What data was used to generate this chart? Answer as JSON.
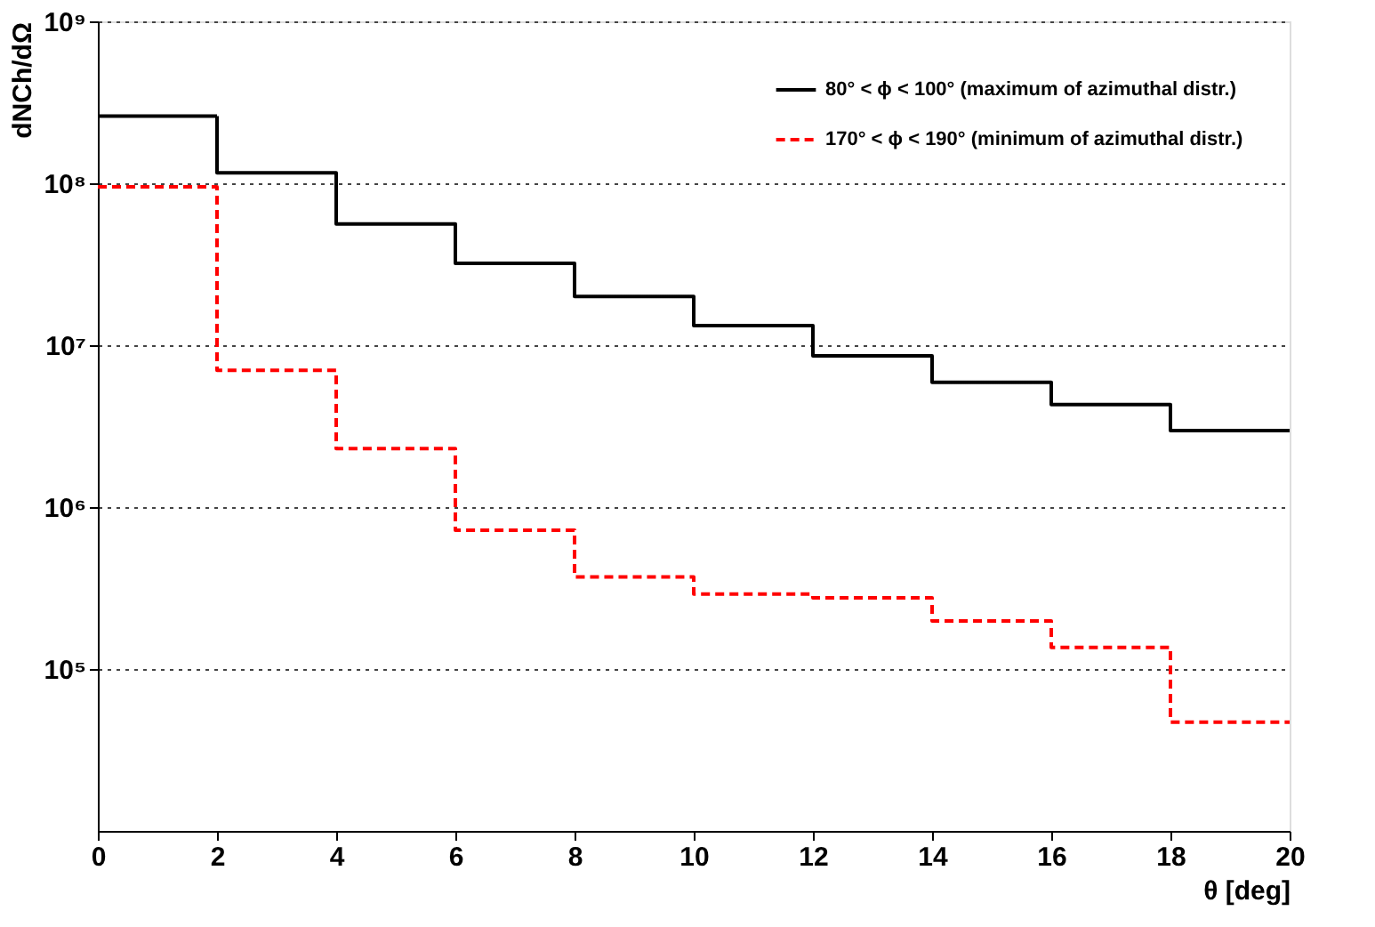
{
  "chart_data": {
    "type": "histogram",
    "xlabel": "θ [deg]",
    "ylabel": "dNCh/dΩ",
    "bins": [
      0,
      2,
      4,
      6,
      8,
      10,
      12,
      14,
      16,
      18,
      20
    ],
    "series": [
      {
        "name": "80° < ϕ < 100° (maximum of azimuthal distr.)",
        "color": "#000000",
        "line_style": "solid",
        "values": [
          260000000.0,
          116000000.0,
          56000000.0,
          32000000.0,
          20000000.0,
          13200000.0,
          8600000.0,
          5900000.0,
          4300000.0,
          2970000.0
        ]
      },
      {
        "name": "170° < ϕ < 190° (minimum of azimuthal distr.)",
        "color": "#ff0000",
        "line_style": "dashed",
        "values": [
          95000000.0,
          7000000.0,
          2300000.0,
          720000.0,
          370000.0,
          290000.0,
          275000.0,
          198000.0,
          136000.0,
          47000.0
        ]
      }
    ],
    "xlim": [
      0,
      20
    ],
    "xticks": [
      0,
      2,
      4,
      6,
      8,
      10,
      12,
      14,
      16,
      18,
      20
    ],
    "ylim": [
      10000,
      1000000000
    ],
    "yticks": [
      {
        "value": 100000,
        "label": "10⁵"
      },
      {
        "value": 1000000,
        "label": "10⁶"
      },
      {
        "value": 10000000,
        "label": "10⁷"
      },
      {
        "value": 100000000,
        "label": "10⁸"
      },
      {
        "value": 1000000000,
        "label": "10⁹"
      }
    ],
    "log": true,
    "grid": "y",
    "legend": "top right"
  }
}
